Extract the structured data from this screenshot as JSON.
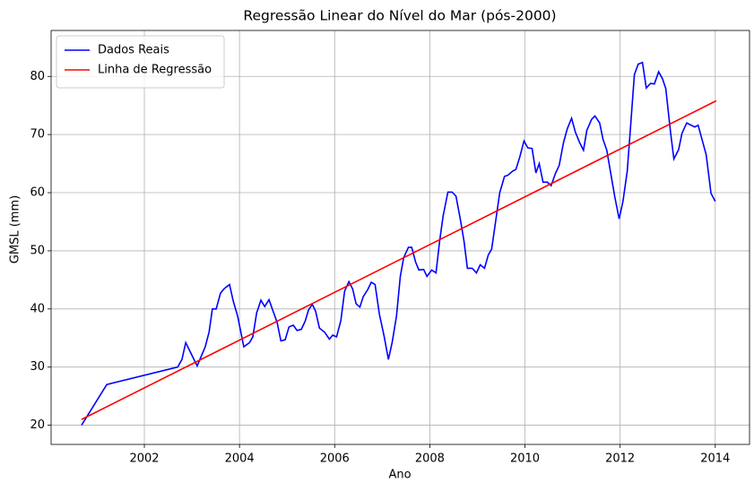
{
  "chart_data": {
    "type": "line",
    "title": "Regressão Linear do Nível do Mar (pós-2000)",
    "x_label": "Ano",
    "y_label": "GMSL (mm)",
    "xlim": [
      2000.04,
      2014.72
    ],
    "ylim": [
      16.7,
      87.9
    ],
    "xticks": [
      2002,
      2004,
      2006,
      2008,
      2010,
      2012,
      2014
    ],
    "yticks": [
      20,
      30,
      40,
      50,
      60,
      70,
      80
    ],
    "grid": true,
    "legend": "upper left",
    "series": [
      {
        "name": "Dados Reais",
        "color": "#0000ff",
        "x": [
          2000.68,
          2001.21,
          2002.7,
          2002.79,
          2002.87,
          2003.11,
          2003.28,
          2003.36,
          2003.43,
          2003.51,
          2003.6,
          2003.68,
          2003.79,
          2003.87,
          2003.96,
          2004.09,
          2004.21,
          2004.28,
          2004.36,
          2004.45,
          2004.53,
          2004.62,
          2004.72,
          2004.79,
          2004.87,
          2004.96,
          2005.04,
          2005.13,
          2005.21,
          2005.3,
          2005.38,
          2005.45,
          2005.53,
          2005.6,
          2005.68,
          2005.79,
          2005.89,
          2005.96,
          2006.04,
          2006.13,
          2006.21,
          2006.3,
          2006.38,
          2006.45,
          2006.53,
          2006.6,
          2006.7,
          2006.77,
          2006.85,
          2006.94,
          2007.04,
          2007.13,
          2007.21,
          2007.3,
          2007.38,
          2007.45,
          2007.55,
          2007.62,
          2007.7,
          2007.77,
          2007.87,
          2007.94,
          2008.04,
          2008.13,
          2008.21,
          2008.28,
          2008.38,
          2008.47,
          2008.55,
          2008.64,
          2008.72,
          2008.79,
          2008.89,
          2008.98,
          2009.06,
          2009.15,
          2009.23,
          2009.3,
          2009.4,
          2009.47,
          2009.57,
          2009.64,
          2009.74,
          2009.81,
          2009.89,
          2009.98,
          2010.06,
          2010.15,
          2010.23,
          2010.3,
          2010.38,
          2010.47,
          2010.55,
          2010.64,
          2010.72,
          2010.81,
          2010.89,
          2010.98,
          2011.06,
          2011.15,
          2011.23,
          2011.3,
          2011.4,
          2011.47,
          2011.57,
          2011.64,
          2011.72,
          2011.81,
          2011.89,
          2011.98,
          2012.06,
          2012.15,
          2012.23,
          2012.3,
          2012.38,
          2012.47,
          2012.55,
          2012.64,
          2012.72,
          2012.81,
          2012.89,
          2012.96,
          2013.06,
          2013.13,
          2013.23,
          2013.3,
          2013.4,
          2013.47,
          2013.57,
          2013.64,
          2013.72,
          2013.81,
          2013.91,
          2014.0
        ],
        "values": [
          20,
          27,
          30,
          31.3,
          34.2,
          30.2,
          33.5,
          36,
          40,
          40,
          42.7,
          43.5,
          44.2,
          41.3,
          38.8,
          33.5,
          34.2,
          35.2,
          39.3,
          41.5,
          40.4,
          41.6,
          39.3,
          37.7,
          34.5,
          34.7,
          36.9,
          37.2,
          36.3,
          36.5,
          37.9,
          39.8,
          40.8,
          39.6,
          36.7,
          36,
          34.8,
          35.5,
          35.2,
          38,
          43.1,
          44.7,
          43.4,
          40.9,
          40.3,
          42.1,
          43.4,
          44.6,
          44.2,
          39.1,
          35.3,
          31.3,
          34.3,
          38.8,
          45.6,
          48.8,
          50.6,
          50.6,
          48.1,
          46.7,
          46.8,
          45.6,
          46.7,
          46.2,
          51.9,
          56,
          60.1,
          60.1,
          59.4,
          55.5,
          51.6,
          47,
          47,
          46.2,
          47.6,
          47,
          49.3,
          50.3,
          56,
          60,
          62.8,
          63,
          63.7,
          64,
          66.1,
          68.9,
          67.7,
          67.6,
          63.4,
          65,
          61.8,
          61.8,
          61.2,
          63.3,
          64.7,
          68.6,
          71,
          72.8,
          70.4,
          68.6,
          67.3,
          70.7,
          72.6,
          73.2,
          72,
          69.2,
          67.3,
          63,
          59.2,
          55.5,
          58.5,
          63.7,
          72.5,
          80.3,
          82.1,
          82.4,
          78,
          78.8,
          78.7,
          80.8,
          79.6,
          77.9,
          70.4,
          65.8,
          67.4,
          70.2,
          72,
          71.7,
          71.3,
          71.6,
          69.2,
          66.5,
          59.9,
          58.5
        ]
      },
      {
        "name": "Linha de Regressão",
        "color": "#ff0000",
        "x": [
          2000.68,
          2014.02
        ],
        "values": [
          21,
          75.8
        ]
      }
    ]
  }
}
